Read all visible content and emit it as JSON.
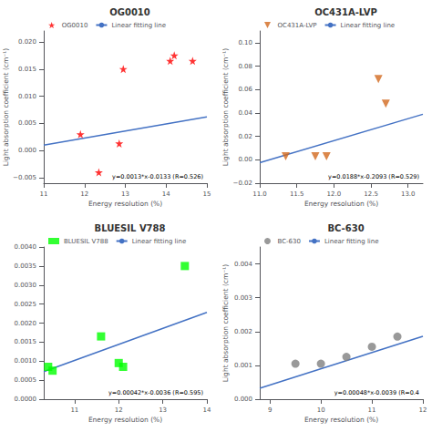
{
  "chart_data": [
    {
      "type": "scatter",
      "title": "OG0010",
      "xlabel": "Energy resolution (%)",
      "ylabel": "Light absorption coefficient (cm⁻¹)",
      "xlim": [
        11.0,
        15.0
      ],
      "ylim": [
        -0.006,
        0.022
      ],
      "xticks": [
        11,
        12,
        13,
        14,
        15
      ],
      "yticks": [
        {
          "value": -0.005,
          "label": "−0.005"
        },
        {
          "value": 0,
          "label": "0.000"
        },
        0.005,
        {
          "value": 0.01,
          "label": "0.010"
        },
        0.015,
        {
          "value": 0.02,
          "label": "0.020"
        }
      ],
      "grid": false,
      "legend": "upper left",
      "annotations": [
        "y=0.0013*x-0.0133 (R=0.526)"
      ],
      "series": [
        {
          "name": "OG0010",
          "type": "scatter",
          "color": "#ff0000",
          "marker": "star",
          "x": [
            11.9,
            12.35,
            12.85,
            12.95,
            14.1,
            14.2,
            14.65
          ],
          "values": [
            0.003,
            -0.004,
            0.0013,
            0.015,
            0.0165,
            0.0175,
            0.0165
          ]
        },
        {
          "name": "Linear fitting line",
          "type": "line",
          "color": "#4472c4",
          "x": [
            11.0,
            15.0
          ],
          "values": [
            0.001,
            0.0062
          ]
        }
      ]
    },
    {
      "type": "scatter",
      "title": "OC431A-LVP",
      "xlabel": "Energy resolution (%)",
      "ylabel": "Light absorption coefficient (cm⁻¹)",
      "xlim": [
        11.0,
        13.2
      ],
      "ylim": [
        -0.02,
        0.11
      ],
      "xticks": [
        {
          "value": 11,
          "label": "11.0"
        },
        11.5,
        {
          "value": 12,
          "label": "12.0"
        },
        12.5,
        {
          "value": 13,
          "label": "13.0"
        }
      ],
      "yticks": [
        {
          "value": -0.02,
          "label": "−0.02"
        },
        {
          "value": 0,
          "label": "0.00"
        },
        0.02,
        0.04,
        0.06,
        0.08,
        {
          "value": 0.1,
          "label": "0.10"
        }
      ],
      "grid": false,
      "legend": "upper left",
      "annotations": [
        "y=0.0188*x-0.2093 (R=0.529)"
      ],
      "series": [
        {
          "name": "OC431A-LVP",
          "type": "scatter",
          "color": "#d2691e",
          "marker": "triangle_down",
          "x": [
            11.35,
            11.75,
            11.9,
            12.6,
            12.7
          ],
          "values": [
            0.003,
            0.003,
            0.003,
            0.069,
            0.048
          ]
        },
        {
          "name": "Linear fitting line",
          "type": "line",
          "color": "#4472c4",
          "x": [
            11.0,
            13.2
          ],
          "values": [
            -0.0025,
            0.03886
          ]
        }
      ]
    },
    {
      "type": "scatter",
      "title": "BLUESIL V788",
      "xlabel": "Energy resolution (%)",
      "xlim": [
        10.3,
        14.0
      ],
      "ylim": [
        0.0,
        0.004
      ],
      "xticks": [
        11,
        12,
        13,
        14
      ],
      "yticks": [
        {
          "value": 0,
          "label": "0.0000"
        },
        0.0005,
        {
          "value": 0.001,
          "label": "0.0010"
        },
        0.0015,
        {
          "value": 0.002,
          "label": "0.0020"
        },
        0.0025,
        {
          "value": 0.003,
          "label": "0.0030"
        },
        0.0035,
        {
          "value": 0.004,
          "label": "0.0040"
        }
      ],
      "grid": false,
      "legend": "upper left",
      "annotations": [
        "y=0.00042*x-0.0036 (R=0.595)"
      ],
      "series": [
        {
          "name": "BLUESIL V788",
          "type": "scatter",
          "color": "#00ff00",
          "marker": "square",
          "x": [
            10.4,
            10.5,
            11.6,
            12.0,
            12.1,
            13.5
          ],
          "values": [
            0.00085,
            0.00075,
            0.00165,
            0.00095,
            0.00085,
            0.0035
          ]
        },
        {
          "name": "Linear fitting line",
          "type": "line",
          "color": "#4472c4",
          "x": [
            10.3,
            14.0
          ],
          "values": [
            0.000726,
            0.00228
          ]
        }
      ]
    },
    {
      "type": "scatter",
      "title": "BC-630",
      "xlabel": "Energy resolution (%)",
      "ylabel": "Light absorption coefficient (cm⁻¹)",
      "xlim": [
        8.8,
        12.0
      ],
      "ylim": [
        0.0,
        0.0045
      ],
      "xticks": [
        9,
        10,
        11,
        12
      ],
      "yticks": [
        {
          "value": 0,
          "label": "0.000"
        },
        0.001,
        0.002,
        0.003,
        0.004
      ],
      "grid": false,
      "legend": "upper left",
      "annotations": [
        "y=0.00048*x-0.0039 (R=0.4"
      ],
      "series": [
        {
          "name": "BC-630",
          "type": "scatter",
          "color": "#808080",
          "marker": "circle",
          "x": [
            9.5,
            10.0,
            10.5,
            11.0,
            11.5
          ],
          "values": [
            0.00105,
            0.00105,
            0.00125,
            0.00155,
            0.00185
          ]
        },
        {
          "name": "Linear fitting line",
          "type": "line",
          "color": "#4472c4",
          "x": [
            8.8,
            12.0
          ],
          "values": [
            0.000324,
            0.00186
          ]
        }
      ]
    }
  ]
}
